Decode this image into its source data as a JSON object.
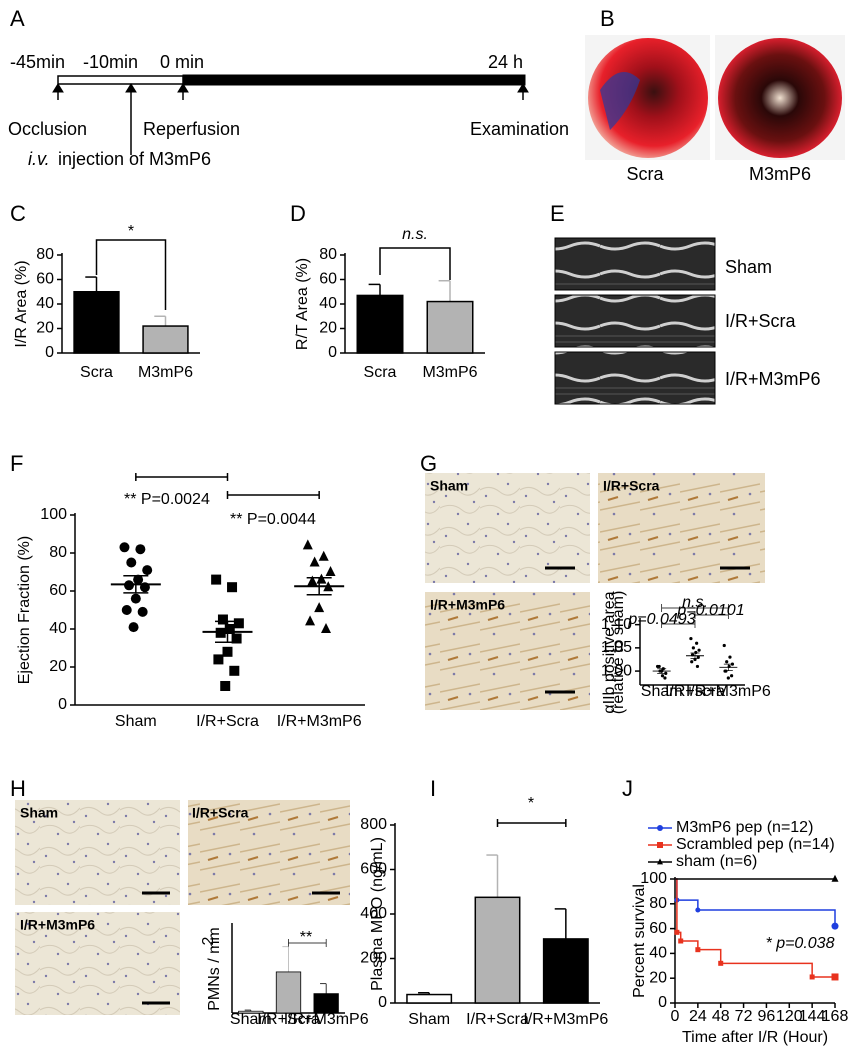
{
  "panel_labels": [
    "A",
    "B",
    "C",
    "D",
    "E",
    "F",
    "G",
    "H",
    "I",
    "J"
  ],
  "timeline": {
    "time_labels": [
      "-45min",
      "-10min",
      "0 min",
      "24 h"
    ],
    "events": [
      "Occlusion",
      "Reperfusion",
      "Examination"
    ],
    "injection_route": "i.v.",
    "injection": "injection of M3mP6"
  },
  "heart_images": {
    "labels": [
      "Scra",
      "M3mP6"
    ]
  },
  "echo_images": {
    "labels": [
      "Sham",
      "I/R+Scra",
      "I/R+M3mP6"
    ]
  },
  "histology_G": {
    "labels": [
      "Sham",
      "I/R+Scra",
      "I/R+M3mP6"
    ]
  },
  "histology_H": {
    "labels": [
      "Sham",
      "I/R+Scra",
      "I/R+M3mP6"
    ]
  },
  "chart_data": [
    {
      "type": "bar",
      "ylabel": "I/R Area (%)",
      "categories": [
        "Scra",
        "M3mP6"
      ],
      "values": [
        50,
        22
      ],
      "errors": [
        12,
        8
      ],
      "colors": [
        "#000000",
        "#b3b3b3"
      ],
      "ylim": [
        0,
        80
      ],
      "yticks": [
        0,
        20,
        40,
        60,
        80
      ],
      "annotations": [
        "*"
      ]
    },
    {
      "type": "bar",
      "ylabel": "R/T Area (%)",
      "categories": [
        "Scra",
        "M3mP6"
      ],
      "values": [
        47,
        42
      ],
      "errors": [
        9,
        17
      ],
      "colors": [
        "#000000",
        "#b3b3b3"
      ],
      "ylim": [
        0,
        80
      ],
      "yticks": [
        0,
        20,
        40,
        60,
        80
      ],
      "annotations": [
        "n.s."
      ]
    },
    {
      "type": "dot",
      "ylabel": "Ejection Fraction (%)",
      "categories": [
        "Sham",
        "I/R+Scra",
        "I/R+M3mP6"
      ],
      "points": [
        [
          83,
          82,
          75,
          71,
          66,
          63,
          62,
          56,
          50,
          49,
          41
        ],
        [
          66,
          62,
          45,
          43,
          40,
          38,
          35,
          28,
          24,
          18,
          10
        ],
        [
          84,
          78,
          75,
          70,
          66,
          65,
          62,
          51,
          44,
          40
        ]
      ],
      "markers": [
        "circle",
        "square",
        "triangle"
      ],
      "means": [
        63.5,
        38.5,
        62.5
      ],
      "errors": [
        4.5,
        5.5,
        4.5
      ],
      "color": "#000000",
      "ylim": [
        0,
        100
      ],
      "yticks": [
        0,
        20,
        40,
        60,
        80,
        100
      ],
      "annotations": [
        "** P=0.0024",
        "** P=0.0044"
      ]
    },
    {
      "type": "dot",
      "ylabel": [
        "αIIb positive area",
        "(relative to sham)"
      ],
      "categories": [
        "Sham",
        "I/R+scra",
        "I/R+M3mP6"
      ],
      "points": [
        [
          1.01,
          1.005,
          1.0,
          0.995,
          0.99,
          1.01,
          0.985,
          1.0
        ],
        [
          1.07,
          1.06,
          1.05,
          1.045,
          1.04,
          1.035,
          1.03,
          1.025,
          1.02,
          1.01
        ],
        [
          1.055,
          1.03,
          1.02,
          1.015,
          1.01,
          1.0,
          0.99,
          0.985,
          1.0
        ]
      ],
      "markers": [
        "circle",
        "circle",
        "circle"
      ],
      "means": [
        1.0,
        1.033,
        1.008
      ],
      "errors": [
        0.005,
        0.006,
        0.007
      ],
      "color": "#000000",
      "ylim": [
        0.97,
        1.11
      ],
      "yticks": [
        {
          "value": 1.0,
          "label": "1.00"
        },
        {
          "value": 1.05,
          "label": "1.05"
        },
        {
          "value": 1.1,
          "label": "1.10"
        }
      ],
      "annotations": [
        "n.s.",
        "p=0.0101",
        "p=0.0493"
      ]
    },
    {
      "type": "bar",
      "ylabel": "PMNs / mm",
      "ylabel_superscript": "2",
      "categories": [
        "Sham",
        "I/R+Scra",
        "I/R+M3mP6"
      ],
      "values": [
        3,
        70,
        33
      ],
      "errors": [
        2,
        43,
        17
      ],
      "colors": [
        "#ffffff",
        "#b3b3b3",
        "#000000"
      ],
      "ylim": [
        0,
        150
      ],
      "annotations": [
        "**"
      ]
    },
    {
      "type": "bar",
      "ylabel": "Plasma MPO (ng/mL)",
      "categories": [
        "Sham",
        "I/R+Scra",
        "I/R+M3mP6"
      ],
      "values": [
        38,
        475,
        288
      ],
      "errors": [
        8,
        190,
        135
      ],
      "colors": [
        "#ffffff",
        "#b3b3b3",
        "#000000"
      ],
      "ylim": [
        0,
        800
      ],
      "yticks": [
        0,
        200,
        400,
        600,
        800
      ],
      "annotations": [
        "*"
      ]
    },
    {
      "type": "line",
      "step": true,
      "xlabel": "Time after I/R (Hour)",
      "ylabel": "Percent survival",
      "series": [
        {
          "name": "M3mP6 pep (n=12)",
          "color": "#1f3fdf",
          "marker": "circle",
          "x": [
            0,
            2,
            24,
            168
          ],
          "values": [
            100,
            83,
            75,
            62
          ]
        },
        {
          "name": "Scrambled pep (n=14)",
          "color": "#e8321e",
          "marker": "square",
          "x": [
            0,
            2,
            6,
            24,
            48,
            144,
            168
          ],
          "values": [
            100,
            57,
            50,
            43,
            32,
            21,
            21
          ]
        },
        {
          "name": "sham (n=6)",
          "color": "#000000",
          "marker": "triangle",
          "x": [
            0,
            168
          ],
          "values": [
            100,
            100
          ]
        }
      ],
      "xlim": [
        0,
        168
      ],
      "xticks": [
        0,
        24,
        48,
        72,
        96,
        120,
        144,
        168
      ],
      "ylim": [
        0,
        100
      ],
      "yticks": [
        0,
        20,
        40,
        60,
        80,
        100
      ],
      "annotations": [
        "* p=0.038"
      ]
    }
  ]
}
